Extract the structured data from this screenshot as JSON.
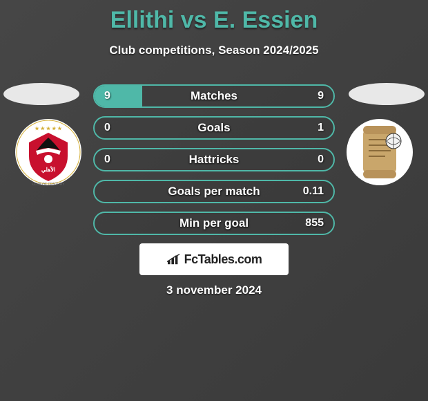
{
  "title": "Ellithi vs E. Essien",
  "subtitle": "Club competitions, Season 2024/2025",
  "date": "3 november 2024",
  "logo": {
    "text": "FcTables.com"
  },
  "colors": {
    "accent": "#4fb8a8",
    "fill": "#4fb8a8",
    "text": "#ffffff",
    "bg": "#3d3d3d"
  },
  "stats": [
    {
      "label": "Matches",
      "left_val": "9",
      "right_val": "9",
      "left_pct": 20,
      "right_pct": 0
    },
    {
      "label": "Goals",
      "left_val": "0",
      "right_val": "1",
      "left_pct": 0,
      "right_pct": 0
    },
    {
      "label": "Hattricks",
      "left_val": "0",
      "right_val": "0",
      "left_pct": 0,
      "right_pct": 0
    },
    {
      "label": "Goals per match",
      "left_val": "",
      "right_val": "0.11",
      "left_pct": 0,
      "right_pct": 0
    },
    {
      "label": "Min per goal",
      "left_val": "",
      "right_val": "855",
      "left_pct": 0,
      "right_pct": 0
    }
  ],
  "crests": {
    "left": {
      "name": "al-ahly-crest"
    },
    "right": {
      "name": "scroll-crest"
    }
  }
}
